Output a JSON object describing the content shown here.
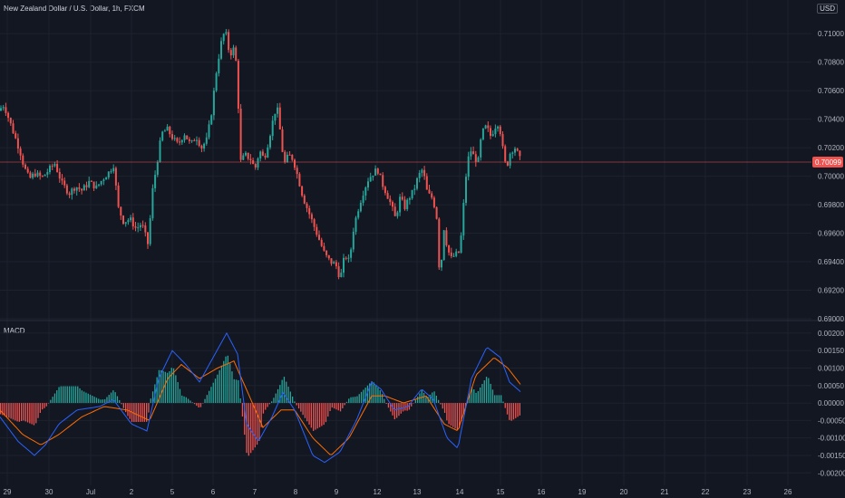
{
  "header": {
    "symbol_title": "New Zealand Dollar / U.S. Dollar, 1h, FXCM"
  },
  "currency_badge": "USD",
  "colors": {
    "background": "#131722",
    "grid": "#1e222d",
    "up": "#26a69a",
    "down": "#ef5350",
    "macd_line": "#2962ff",
    "signal_line": "#ff6d00",
    "hist_pos": "#26a69a",
    "hist_neg": "#ef5350",
    "price_line": "#ef5350",
    "price_badge": "#ef5350"
  },
  "chart_data": [
    {
      "type": "candlestick",
      "title": "New Zealand Dollar / U.S. Dollar, 1h, FXCM",
      "y_ticks": [
        "0.71000",
        "0.70800",
        "0.70600",
        "0.70400",
        "0.70200",
        "0.70000",
        "0.69800",
        "0.69600",
        "0.69400",
        "0.69200",
        "0.69000"
      ],
      "ylim": [
        0.69,
        0.7116
      ],
      "x_ticks": [
        "29",
        "30",
        "Jul",
        "2",
        "5",
        "6",
        "7",
        "8",
        "9",
        "12",
        "13",
        "14",
        "15",
        "16",
        "19",
        "20",
        "21",
        "22",
        "23",
        "26"
      ],
      "last_price": "0.70099",
      "last_price_value": 0.70099,
      "grid": true,
      "path_anchors": [
        [
          0,
          0.7046
        ],
        [
          6,
          0.705
        ],
        [
          11,
          0.7041
        ],
        [
          18,
          0.7028
        ],
        [
          24,
          0.7017
        ],
        [
          28,
          0.7007
        ],
        [
          34,
          0.6998
        ],
        [
          40,
          0.7002
        ],
        [
          48,
          0.6999
        ],
        [
          55,
          0.7004
        ],
        [
          62,
          0.7009
        ],
        [
          70,
          0.6995
        ],
        [
          78,
          0.6988
        ],
        [
          85,
          0.6993
        ],
        [
          92,
          0.699
        ],
        [
          100,
          0.6996
        ],
        [
          108,
          0.6992
        ],
        [
          115,
          0.6998
        ],
        [
          122,
          0.7003
        ],
        [
          127,
          0.7008
        ],
        [
          132,
          0.6978
        ],
        [
          138,
          0.6968
        ],
        [
          145,
          0.697
        ],
        [
          152,
          0.6963
        ],
        [
          158,
          0.6967
        ],
        [
          165,
          0.6952
        ],
        [
          170,
          0.699
        ],
        [
          175,
          0.701
        ],
        [
          180,
          0.703
        ],
        [
          186,
          0.7033
        ],
        [
          192,
          0.7027
        ],
        [
          198,
          0.7022
        ],
        [
          205,
          0.703
        ],
        [
          212,
          0.7022
        ],
        [
          218,
          0.7028
        ],
        [
          224,
          0.702
        ],
        [
          230,
          0.7026
        ],
        [
          235,
          0.7045
        ],
        [
          240,
          0.7072
        ],
        [
          245,
          0.7092
        ],
        [
          250,
          0.7103
        ],
        [
          255,
          0.7085
        ],
        [
          260,
          0.709
        ],
        [
          263,
          0.7075
        ],
        [
          267,
          0.701
        ],
        [
          272,
          0.7015
        ],
        [
          278,
          0.7012
        ],
        [
          283,
          0.7005
        ],
        [
          288,
          0.7018
        ],
        [
          293,
          0.7012
        ],
        [
          298,
          0.7025
        ],
        [
          303,
          0.704
        ],
        [
          307,
          0.705
        ],
        [
          311,
          0.703
        ],
        [
          315,
          0.7008
        ],
        [
          320,
          0.7015
        ],
        [
          325,
          0.7012
        ],
        [
          330,
          0.7
        ],
        [
          336,
          0.6985
        ],
        [
          342,
          0.6975
        ],
        [
          348,
          0.6965
        ],
        [
          354,
          0.6955
        ],
        [
          360,
          0.6945
        ],
        [
          366,
          0.694
        ],
        [
          372,
          0.6938
        ],
        [
          377,
          0.6928
        ],
        [
          382,
          0.6945
        ],
        [
          387,
          0.694
        ],
        [
          392,
          0.6965
        ],
        [
          398,
          0.698
        ],
        [
          403,
          0.699
        ],
        [
          408,
          0.6998
        ],
        [
          413,
          0.7002
        ],
        [
          418,
          0.7005
        ],
        [
          423,
          0.6995
        ],
        [
          428,
          0.6988
        ],
        [
          433,
          0.698
        ],
        [
          438,
          0.697
        ],
        [
          443,
          0.6985
        ],
        [
          448,
          0.6978
        ],
        [
          453,
          0.6985
        ],
        [
          458,
          0.699
        ],
        [
          463,
          0.7
        ],
        [
          468,
          0.7005
        ],
        [
          473,
          0.6988
        ],
        [
          478,
          0.6985
        ],
        [
          483,
          0.6975
        ],
        [
          487,
          0.6925
        ],
        [
          491,
          0.6965
        ],
        [
          495,
          0.695
        ],
        [
          499,
          0.6942
        ],
        [
          504,
          0.6945
        ],
        [
          509,
          0.6947
        ],
        [
          513,
          0.698
        ],
        [
          517,
          0.701
        ],
        [
          521,
          0.7018
        ],
        [
          525,
          0.7013
        ],
        [
          529,
          0.701
        ],
        [
          533,
          0.703
        ],
        [
          538,
          0.7035
        ],
        [
          543,
          0.7028
        ],
        [
          548,
          0.7035
        ],
        [
          552,
          0.7038
        ],
        [
          556,
          0.702
        ],
        [
          560,
          0.7005
        ],
        [
          565,
          0.7018
        ],
        [
          570,
          0.702
        ],
        [
          575,
          0.7012
        ]
      ]
    },
    {
      "type": "macd",
      "title": "MACD",
      "y_ticks": [
        "0.00200",
        "0.00150",
        "0.00100",
        "0.00050",
        "0.00000",
        "-0.00050",
        "-0.00100",
        "-0.00150",
        "-0.00200"
      ],
      "ylim": [
        -0.0022,
        0.0021
      ],
      "macd_anchors": [
        [
          0,
          -0.0004
        ],
        [
          20,
          -0.0011
        ],
        [
          38,
          -0.0015
        ],
        [
          50,
          -0.0012
        ],
        [
          65,
          -0.0006
        ],
        [
          85,
          -0.0002
        ],
        [
          110,
          -0.0001
        ],
        [
          125,
          0.0001
        ],
        [
          145,
          -0.0006
        ],
        [
          162,
          -0.0008
        ],
        [
          175,
          0.0007
        ],
        [
          190,
          0.0015
        ],
        [
          205,
          0.0011
        ],
        [
          220,
          0.0006
        ],
        [
          235,
          0.0013
        ],
        [
          250,
          0.002
        ],
        [
          262,
          0.0014
        ],
        [
          272,
          -0.0006
        ],
        [
          285,
          -0.0011
        ],
        [
          300,
          -0.0004
        ],
        [
          312,
          0.0003
        ],
        [
          325,
          -0.0002
        ],
        [
          345,
          -0.0015
        ],
        [
          358,
          -0.0017
        ],
        [
          375,
          -0.0014
        ],
        [
          393,
          -0.0005
        ],
        [
          410,
          0.0006
        ],
        [
          420,
          0.0004
        ],
        [
          435,
          -0.0002
        ],
        [
          450,
          -0.0001
        ],
        [
          465,
          0.0004
        ],
        [
          478,
          0.0001
        ],
        [
          493,
          -0.001
        ],
        [
          505,
          -0.0013
        ],
        [
          520,
          0.0007
        ],
        [
          537,
          0.0016
        ],
        [
          552,
          0.0013
        ],
        [
          562,
          0.0006
        ],
        [
          575,
          0.0003
        ]
      ],
      "signal_anchors": [
        [
          0,
          -0.0002
        ],
        [
          25,
          -0.0009
        ],
        [
          45,
          -0.0012
        ],
        [
          65,
          -0.0009
        ],
        [
          90,
          -0.0004
        ],
        [
          115,
          -0.0001
        ],
        [
          140,
          -0.0002
        ],
        [
          165,
          -0.0005
        ],
        [
          185,
          0.0007
        ],
        [
          200,
          0.0011
        ],
        [
          220,
          0.0007
        ],
        [
          240,
          0.001
        ],
        [
          258,
          0.0012
        ],
        [
          275,
          0.0002
        ],
        [
          290,
          -0.0007
        ],
        [
          310,
          -0.0002
        ],
        [
          325,
          -0.0002
        ],
        [
          345,
          -0.001
        ],
        [
          365,
          -0.0015
        ],
        [
          385,
          -0.001
        ],
        [
          410,
          0.0002
        ],
        [
          425,
          0.0002
        ],
        [
          445,
          0.0
        ],
        [
          470,
          0.0002
        ],
        [
          490,
          -0.0006
        ],
        [
          505,
          -0.0008
        ],
        [
          525,
          0.0008
        ],
        [
          545,
          0.0013
        ],
        [
          560,
          0.001
        ],
        [
          575,
          0.0005
        ]
      ],
      "histogram_range": [
        0,
        575
      ]
    }
  ]
}
